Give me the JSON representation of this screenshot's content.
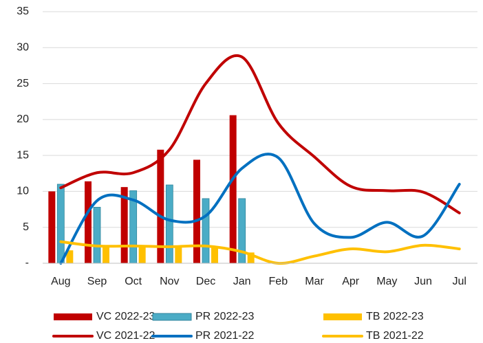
{
  "chart_data": {
    "type": "combo",
    "categories": [
      "Aug",
      "Sep",
      "Oct",
      "Nov",
      "Dec",
      "Jan",
      "Feb",
      "Mar",
      "Apr",
      "May",
      "Jun",
      "Jul"
    ],
    "ylim": [
      0,
      35
    ],
    "yticks": [
      {
        "value": 0,
        "label": "-"
      },
      5,
      10,
      15,
      20,
      25,
      30,
      35
    ],
    "grid": true,
    "series": [
      {
        "name": "VC 2022-23",
        "type": "bar",
        "color": "#c00000",
        "values": [
          10,
          11.4,
          10.6,
          15.8,
          14.4,
          20.6,
          null,
          null,
          null,
          null,
          null,
          null
        ]
      },
      {
        "name": "PR 2022-23",
        "type": "bar",
        "color": "#4bacc6",
        "values": [
          11,
          7.8,
          10.1,
          10.9,
          9,
          9,
          null,
          null,
          null,
          null,
          null,
          null
        ]
      },
      {
        "name": "TB 2022-23",
        "type": "bar",
        "color": "#ffc000",
        "values": [
          1.8,
          2.2,
          2.3,
          2.3,
          2.3,
          1.5,
          null,
          null,
          null,
          null,
          null,
          null
        ]
      },
      {
        "name": "VC 2021-22",
        "type": "line",
        "color": "#c00000",
        "values": [
          10.5,
          12.6,
          12.6,
          15.8,
          25,
          28.7,
          19.5,
          14.8,
          10.7,
          10.1,
          9.9,
          7
        ]
      },
      {
        "name": "PR 2021-22",
        "type": "line",
        "color": "#0070c0",
        "values": [
          0,
          8.7,
          8.8,
          6,
          6.6,
          13.2,
          14.7,
          5.5,
          3.6,
          5.7,
          3.8,
          11
        ]
      },
      {
        "name": "TB 2021-22",
        "type": "line",
        "color": "#ffc000",
        "values": [
          3,
          2.4,
          2.4,
          2.3,
          2.4,
          1.6,
          0,
          1,
          2,
          1.6,
          2.5,
          2
        ]
      }
    ]
  }
}
